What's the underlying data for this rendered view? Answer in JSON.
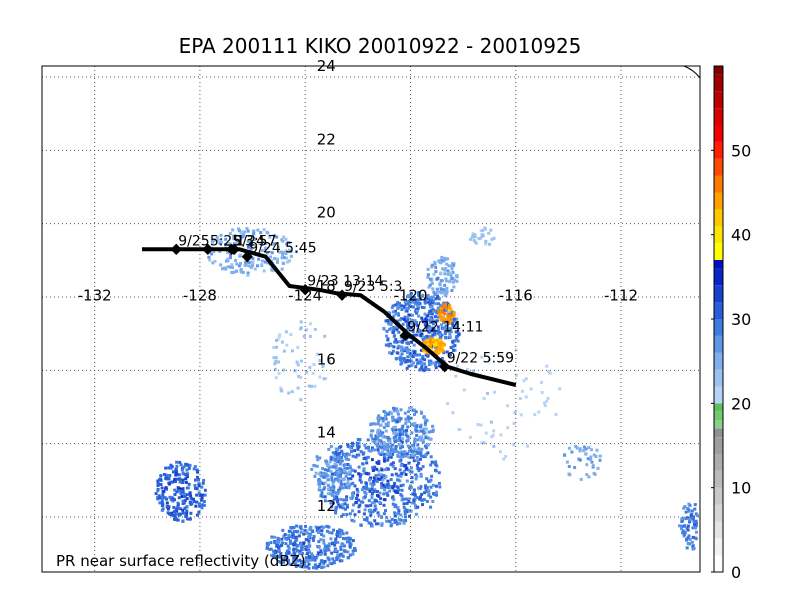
{
  "title": "EPA 200111 KIKO 20010922 - 20010925",
  "caption": "PR near surface reflectivity (dBZ)",
  "map": {
    "lon_range": [
      -134,
      -109
    ],
    "lat_range": [
      10.5,
      24.3
    ],
    "lon_ticks": [
      -132,
      -128,
      -124,
      -120,
      -116,
      -112
    ],
    "lon_tick_labels": [
      "-132",
      "-128",
      "-124",
      "-120",
      "-116",
      "-112"
    ],
    "lat_ticks": [
      12,
      14,
      16,
      18,
      20,
      22,
      24
    ],
    "lat_tick_labels": [
      "12",
      "14",
      "16",
      "18",
      "20",
      "22",
      "24"
    ],
    "grid": true
  },
  "track": {
    "color": "#000000",
    "path": [
      [
        -130.2,
        19.3
      ],
      [
        -128.0,
        19.3
      ],
      [
        -126.5,
        19.3
      ],
      [
        -125.5,
        19.1
      ],
      [
        -124.6,
        18.3
      ],
      [
        -123.5,
        18.2
      ],
      [
        -122.8,
        18.1
      ],
      [
        -121.9,
        18.05
      ],
      [
        -121.0,
        17.6
      ],
      [
        -120.1,
        17.0
      ],
      [
        -119.4,
        16.6
      ],
      [
        -118.6,
        16.1
      ],
      [
        -117.7,
        15.9
      ],
      [
        -116.0,
        15.6
      ]
    ],
    "fixes": [
      {
        "label": "9/25",
        "lon": -128.9,
        "lat": 19.3
      },
      {
        "label": "5:25",
        "lon": -127.7,
        "lat": 19.3
      },
      {
        "label": "9/24",
        "lon": -126.8,
        "lat": 19.3
      },
      {
        "label": "13:57",
        "lon": -126.7,
        "lat": 19.3
      },
      {
        "label": "9/24 5:45",
        "lon": -126.2,
        "lat": 19.1
      },
      {
        "label": "9/23 13:14",
        "lon": -124.0,
        "lat": 18.2
      },
      {
        "label": "9/23 5:3",
        "lon": -122.6,
        "lat": 18.05
      },
      {
        "label": "9/22 14:11",
        "lon": -120.2,
        "lat": 16.95
      },
      {
        "label": "9/22 5:59",
        "lon": -118.7,
        "lat": 16.1
      }
    ]
  },
  "colorbar": {
    "min": 0,
    "max": 60,
    "ticks": [
      0,
      10,
      20,
      30,
      40,
      50
    ],
    "tick_labels": [
      "0",
      "10",
      "20",
      "30",
      "40",
      "50"
    ],
    "stops": [
      {
        "v": 0,
        "color": "#ffffff"
      },
      {
        "v": 2,
        "color": "#f2f2f2"
      },
      {
        "v": 4,
        "color": "#e4e4e4"
      },
      {
        "v": 6,
        "color": "#d6d6d6"
      },
      {
        "v": 8,
        "color": "#c8c8c8"
      },
      {
        "v": 10,
        "color": "#bababa"
      },
      {
        "v": 12,
        "color": "#acacac"
      },
      {
        "v": 14,
        "color": "#9e9e9e"
      },
      {
        "v": 16,
        "color": "#909090"
      },
      {
        "v": 17,
        "color": "#8acf8a"
      },
      {
        "v": 18,
        "color": "#70c870"
      },
      {
        "v": 19,
        "color": "#5cbf5c"
      },
      {
        "v": 20,
        "color": "#b8d4f4"
      },
      {
        "v": 22,
        "color": "#9cc2f0"
      },
      {
        "v": 24,
        "color": "#80b0ec"
      },
      {
        "v": 26,
        "color": "#5f96e6"
      },
      {
        "v": 28,
        "color": "#3f7ce0"
      },
      {
        "v": 30,
        "color": "#2a5ed8"
      },
      {
        "v": 32,
        "color": "#1a40d0"
      },
      {
        "v": 34,
        "color": "#0a24c8"
      },
      {
        "v": 36,
        "color": "#0010c0"
      },
      {
        "v": 37,
        "color": "#ffff00"
      },
      {
        "v": 39,
        "color": "#ffe600"
      },
      {
        "v": 41,
        "color": "#ffc800"
      },
      {
        "v": 43,
        "color": "#ffa000"
      },
      {
        "v": 45,
        "color": "#ff7800"
      },
      {
        "v": 47,
        "color": "#ff4b00"
      },
      {
        "v": 49,
        "color": "#ff1e00"
      },
      {
        "v": 51,
        "color": "#f00000"
      },
      {
        "v": 53,
        "color": "#d40000"
      },
      {
        "v": 55,
        "color": "#b80000"
      },
      {
        "v": 57,
        "color": "#9c0000"
      },
      {
        "v": 59,
        "color": "#800000"
      }
    ]
  }
}
